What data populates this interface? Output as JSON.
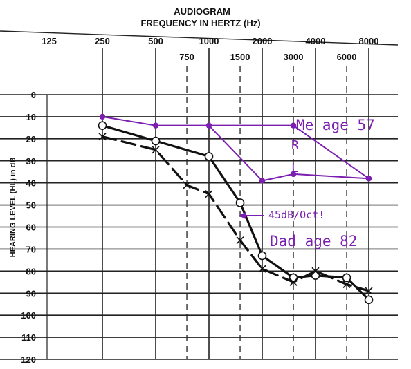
{
  "chart_data": {
    "type": "line",
    "title": "AUDIOGRAM",
    "subtitle": "FREQUENCY IN HERTZ (Hz)",
    "ylabel": "HEARING LEVEL (HL) in dB",
    "x_ticks_upper": [
      "125",
      "250",
      "500",
      "1000",
      "2000",
      "4000",
      "8000"
    ],
    "x_ticks_lower": [
      "750",
      "1500",
      "3000",
      "6000"
    ],
    "y_ticks": [
      "0",
      "10",
      "20",
      "30",
      "40",
      "50",
      "60",
      "70",
      "80",
      "90",
      "100",
      "110",
      "120"
    ],
    "ylim": [
      120,
      0
    ],
    "x_scale": "log2",
    "grid": true,
    "series": [
      {
        "name": "Me age 57 R",
        "color": "#7a1fb0",
        "points": [
          [
            250,
            10
          ],
          [
            500,
            14
          ],
          [
            1000,
            14
          ],
          [
            3000,
            14
          ],
          [
            8000,
            38
          ]
        ]
      },
      {
        "name": "Me age 57 L",
        "color": "#7a1fb0",
        "points": [
          [
            1000,
            14
          ],
          [
            2000,
            39
          ],
          [
            3000,
            36
          ],
          [
            8000,
            38
          ]
        ]
      },
      {
        "color": "#111111",
        "marker": "circle",
        "points": [
          [
            250,
            14
          ],
          [
            500,
            21
          ],
          [
            1000,
            28
          ],
          [
            1500,
            49
          ],
          [
            2000,
            73
          ],
          [
            3000,
            83
          ],
          [
            4000,
            82
          ],
          [
            6000,
            83
          ],
          [
            8000,
            93
          ]
        ]
      },
      {
        "color": "#111111",
        "marker": "x",
        "dashed": true,
        "points": [
          [
            250,
            19
          ],
          [
            500,
            25
          ],
          [
            750,
            41
          ],
          [
            1000,
            45
          ],
          [
            1500,
            66
          ],
          [
            2000,
            79
          ],
          [
            3000,
            85
          ],
          [
            4000,
            80
          ],
          [
            6000,
            86
          ],
          [
            8000,
            89
          ]
        ]
      }
    ],
    "annotations": {
      "me": "Me age 57",
      "right": "R",
      "left": "L",
      "slope": "45dB/Oct!",
      "dad": "Dad age 82"
    }
  }
}
